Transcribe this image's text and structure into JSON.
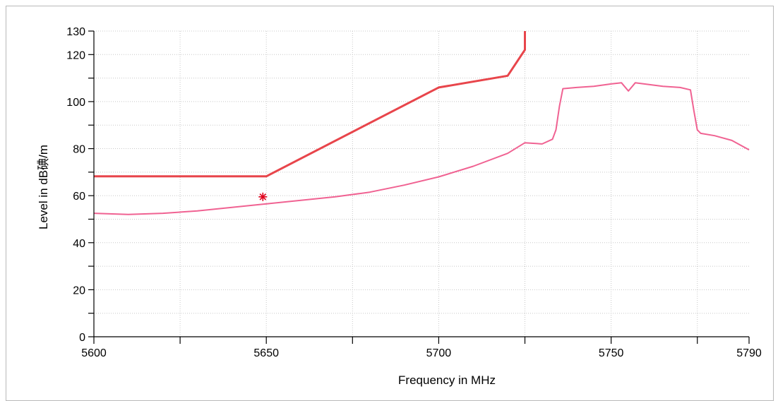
{
  "chart_data": {
    "type": "line",
    "xlabel": "Frequency in MHz",
    "ylabel": "Level in dB碘/m",
    "xlim": [
      5600,
      5790
    ],
    "ylim": [
      0,
      130
    ],
    "x_ticks": [
      5600,
      5650,
      5700,
      5750,
      5790
    ],
    "x_tick_labels": [
      "5600",
      "5650",
      "5700",
      "5750",
      "5790"
    ],
    "y_ticks": [
      0,
      20,
      40,
      60,
      80,
      100,
      120,
      130
    ],
    "y_tick_labels": [
      "0",
      "20",
      "40",
      "60",
      "80",
      "100",
      "120",
      "130"
    ],
    "grid": true,
    "colors": {
      "limit": "#e8454b",
      "measurement": "#f06292",
      "marker": "#e0001b",
      "grid": "#c8c8c8"
    },
    "series": [
      {
        "key": "limit",
        "points": [
          [
            5600,
            68.2
          ],
          [
            5650,
            68.2
          ],
          [
            5700,
            106
          ],
          [
            5720,
            111
          ],
          [
            5725,
            122
          ],
          [
            5725,
            130
          ]
        ]
      },
      {
        "key": "measurement",
        "points": [
          [
            5600,
            52.5
          ],
          [
            5610,
            52.0
          ],
          [
            5620,
            52.5
          ],
          [
            5630,
            53.5
          ],
          [
            5640,
            55.0
          ],
          [
            5650,
            56.5
          ],
          [
            5660,
            58.0
          ],
          [
            5670,
            59.5
          ],
          [
            5680,
            61.5
          ],
          [
            5690,
            64.5
          ],
          [
            5700,
            68.0
          ],
          [
            5710,
            72.5
          ],
          [
            5720,
            78.0
          ],
          [
            5725,
            82.5
          ],
          [
            5730,
            82.0
          ],
          [
            5733,
            84.0
          ],
          [
            5734,
            88.0
          ],
          [
            5735,
            98.0
          ],
          [
            5736,
            105.5
          ],
          [
            5740,
            106.0
          ],
          [
            5745,
            106.5
          ],
          [
            5750,
            107.5
          ],
          [
            5753,
            108.0
          ],
          [
            5755,
            104.5
          ],
          [
            5757,
            108.0
          ],
          [
            5765,
            106.5
          ],
          [
            5770,
            106.0
          ],
          [
            5773,
            105.0
          ],
          [
            5774,
            96.0
          ],
          [
            5775,
            88.0
          ],
          [
            5776,
            86.5
          ],
          [
            5780,
            85.5
          ],
          [
            5785,
            83.5
          ],
          [
            5790,
            79.5
          ]
        ]
      }
    ],
    "markers": [
      {
        "x": 5649,
        "y": 59.5,
        "symbol": "asterisk"
      }
    ]
  }
}
